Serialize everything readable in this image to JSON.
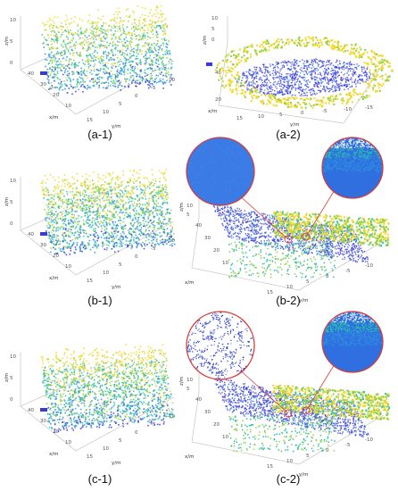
{
  "figure": {
    "panels": [
      {
        "id": "a-1",
        "caption": "(a-1)",
        "view": "oblique",
        "z_label": "z/m",
        "x_label": "x/m",
        "y_label": "y/m",
        "z_ticks": [
          "10",
          "5",
          "0"
        ],
        "x_ticks": [
          "40",
          "30",
          "20",
          "10"
        ],
        "y_ticks": [
          "15",
          "10",
          "5",
          "0",
          "-5",
          "-10"
        ]
      },
      {
        "id": "a-2",
        "caption": "(a-2)",
        "view": "top",
        "z_label": "z/m",
        "x_label": "x/m",
        "y_label": "y/m",
        "z_ticks": [
          "10",
          "5",
          "0"
        ],
        "x_ticks": [
          "40",
          "20"
        ],
        "y_ticks": [
          "15",
          "10",
          "5",
          "0",
          "-5",
          "-10",
          "-15"
        ]
      },
      {
        "id": "b-1",
        "caption": "(b-1)",
        "view": "oblique",
        "z_label": "z/m",
        "x_label": "x/m",
        "y_label": "y/m",
        "z_ticks": [
          "10",
          "5",
          "0"
        ],
        "x_ticks": [
          "40",
          "30",
          "20",
          "10"
        ],
        "y_ticks": [
          "15",
          "10",
          "5",
          "0",
          "-5",
          "-10"
        ]
      },
      {
        "id": "b-2",
        "caption": "(b-2)",
        "view": "perspective-zoom",
        "z_label": "z/m",
        "x_label": "x/m",
        "y_label": "y/m",
        "z_ticks": [
          "10",
          "5"
        ],
        "x_ticks": [
          "40",
          "30",
          "20",
          "10"
        ],
        "y_ticks": [
          "15",
          "10",
          "5",
          "0",
          "-5",
          "-10"
        ],
        "zoom_styles": [
          "smooth",
          "gradient"
        ]
      },
      {
        "id": "c-1",
        "caption": "(c-1)",
        "view": "oblique",
        "z_label": "z/m",
        "x_label": "x/m",
        "y_label": "y/m",
        "z_ticks": [
          "10",
          "5",
          "0"
        ],
        "x_ticks": [
          "40",
          "30",
          "20",
          "10"
        ],
        "y_ticks": [
          "15",
          "10",
          "5",
          "0",
          "-5",
          "-10"
        ]
      },
      {
        "id": "c-2",
        "caption": "(c-2)",
        "view": "perspective-zoom",
        "z_label": "z/m",
        "x_label": "x/m",
        "y_label": "y/m",
        "z_ticks": [
          "10",
          "5"
        ],
        "x_ticks": [
          "40",
          "30",
          "20",
          "10"
        ],
        "y_ticks": [
          "15",
          "10",
          "5",
          "0",
          "-5",
          "-10"
        ],
        "zoom_styles": [
          "texture",
          "gradient"
        ]
      }
    ],
    "colors": {
      "low": "#3a3ad6",
      "mid_low": "#2f8fe0",
      "mid": "#2bbfb0",
      "mid_high": "#8fd14f",
      "high": "#f2d82a",
      "zoom_ring": "#d83a3a"
    }
  }
}
